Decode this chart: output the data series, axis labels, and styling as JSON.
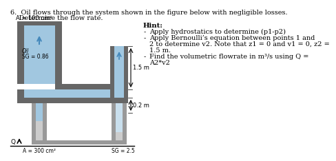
{
  "title_line1": "6.  Oil flows through the system shown in the figure below with negligible losses.",
  "title_line2": "    Determine the flow rate.",
  "hint_title": "Hint:",
  "hint_bullet1": "Apply hydrostatics to determine (p1-p2)",
  "hint_bullet2": "Apply Bernoulli’s equation between points 1 and",
  "hint_cont1": "2 to determine v2. Note that z1 = 0 and v1 = 0, z2 =",
  "hint_cont2": "1.5 m.",
  "hint_bullet3": "Find the volumetric flowrate in m³/s using Q =",
  "hint_cont3": "A2*v2",
  "label_A1": "A = 100 cm²",
  "label_oil": "Oil",
  "label_SG1": "SG = 0.86",
  "label_15m": "1.5 m",
  "label_02m": "0.2 m",
  "label_A2": "A = 300 cm²",
  "label_SG2": "SG = 2.5",
  "label_Q": "Q",
  "bg_color": "#ffffff",
  "pipe_dark": "#666666",
  "pipe_mid": "#999999",
  "pipe_light": "#bbbbbb",
  "fluid_blue": "#7ab0d4",
  "mercury_col": "#cccccc",
  "arrow_blue": "#4488bb"
}
